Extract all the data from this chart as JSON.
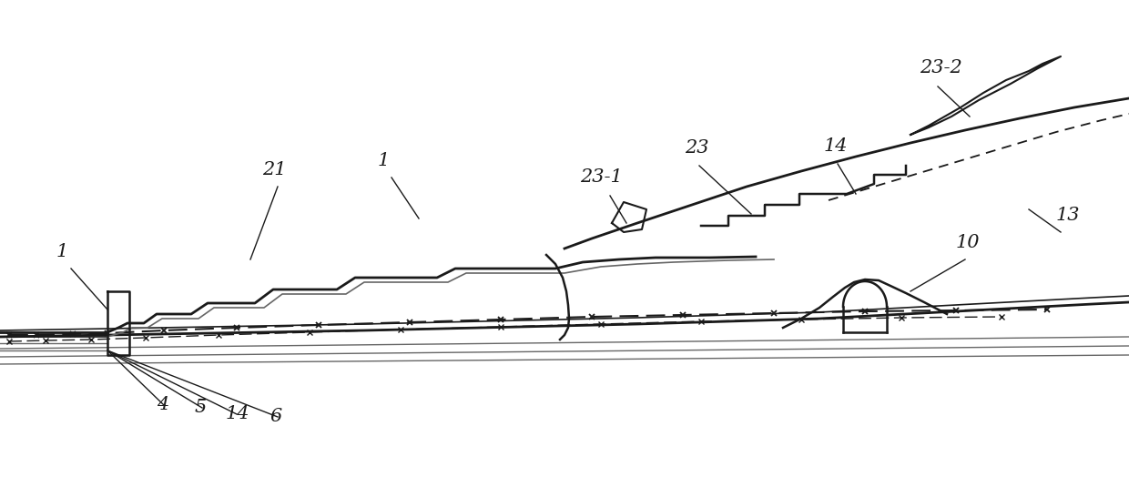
{
  "bg_color": "#ffffff",
  "lc": "#1a1a1a",
  "gc": "#666666",
  "fig_width": 12.4,
  "fig_height": 5.24
}
